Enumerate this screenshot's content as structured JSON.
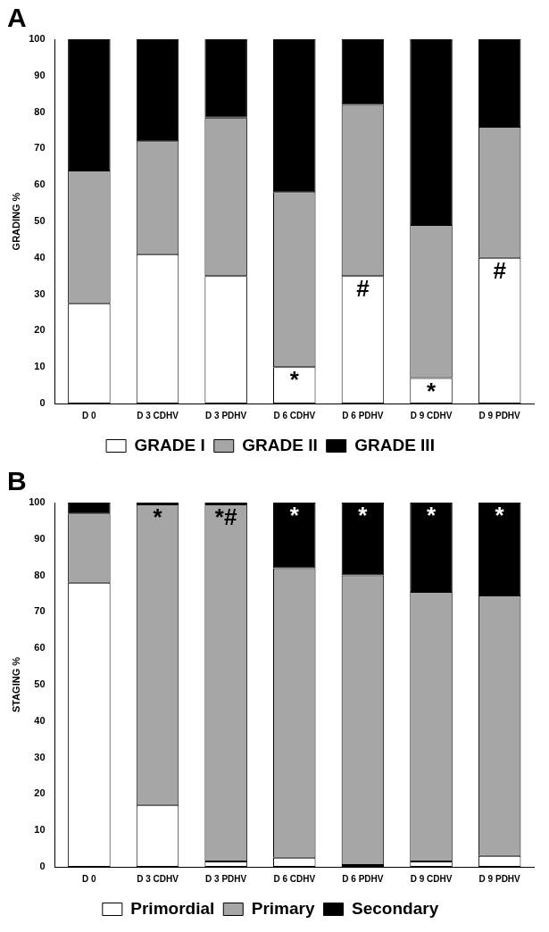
{
  "chart_data": [
    {
      "type": "bar",
      "title": "A",
      "y_label": "GRADING %",
      "stacked": true,
      "grid": false,
      "legend": "bottom",
      "categories": [
        "D 0",
        "D 3 CDHV",
        "D 3 PDHV",
        "D 6 CDHV",
        "D 6 PDHV",
        "D 9 CDHV",
        "D 9 PDHV"
      ],
      "series": [
        {
          "name": "GRADE I",
          "color": "#ffffff",
          "values": [
            27.5,
            41,
            35,
            10,
            35,
            7,
            40
          ]
        },
        {
          "name": "GRADE II",
          "color": "#a6a6a6",
          "values": [
            36.5,
            31,
            43.5,
            48,
            47,
            42,
            36
          ]
        },
        {
          "name": "GRADE III",
          "color": "#000000",
          "values": [
            36,
            28,
            21.5,
            42,
            18,
            51,
            24
          ]
        }
      ],
      "ylim": [
        0,
        100
      ],
      "yticks": [
        0,
        10,
        20,
        30,
        40,
        50,
        60,
        70,
        80,
        90,
        100
      ],
      "annotations": [
        {
          "category": "D 6 CDHV",
          "series": "GRADE I",
          "text": "*"
        },
        {
          "category": "D 6 PDHV",
          "series": "GRADE I",
          "text": "#"
        },
        {
          "category": "D 9 CDHV",
          "series": "GRADE I",
          "text": "*"
        },
        {
          "category": "D 9 PDHV",
          "series": "GRADE I",
          "text": "#"
        }
      ]
    },
    {
      "type": "bar",
      "title": "B",
      "y_label": "STAGING %",
      "stacked": true,
      "grid": false,
      "legend": "bottom",
      "categories": [
        "D 0",
        "D 3 CDHV",
        "D 3 PDHV",
        "D 6 CDHV",
        "D 6 PDHV",
        "D 9 CDHV",
        "D 9 PDHV"
      ],
      "series": [
        {
          "name": "Primordial",
          "color": "#ffffff",
          "values": [
            78,
            17,
            1.5,
            2.5,
            0.5,
            1.5,
            3
          ]
        },
        {
          "name": "Primary",
          "color": "#a6a6a6",
          "values": [
            19,
            82.5,
            98,
            79.5,
            79.5,
            74,
            71.5
          ]
        },
        {
          "name": "Secondary",
          "color": "#000000",
          "values": [
            3,
            0.5,
            0.5,
            18,
            20,
            24.5,
            25.5
          ]
        }
      ],
      "ylim": [
        0,
        100
      ],
      "yticks": [
        0,
        10,
        20,
        30,
        40,
        50,
        60,
        70,
        80,
        90,
        100
      ],
      "annotations": [
        {
          "category": "D 3 CDHV",
          "series": "Primary",
          "text": "*"
        },
        {
          "category": "D 3 PDHV",
          "series": "Primary",
          "text": "*#"
        },
        {
          "category": "D 6 CDHV",
          "series": "Secondary",
          "text": "*"
        },
        {
          "category": "D 6 PDHV",
          "series": "Secondary",
          "text": "*"
        },
        {
          "category": "D 9 CDHV",
          "series": "Secondary",
          "text": "*"
        },
        {
          "category": "D 9 PDHV",
          "series": "Secondary",
          "text": "*"
        }
      ]
    }
  ]
}
